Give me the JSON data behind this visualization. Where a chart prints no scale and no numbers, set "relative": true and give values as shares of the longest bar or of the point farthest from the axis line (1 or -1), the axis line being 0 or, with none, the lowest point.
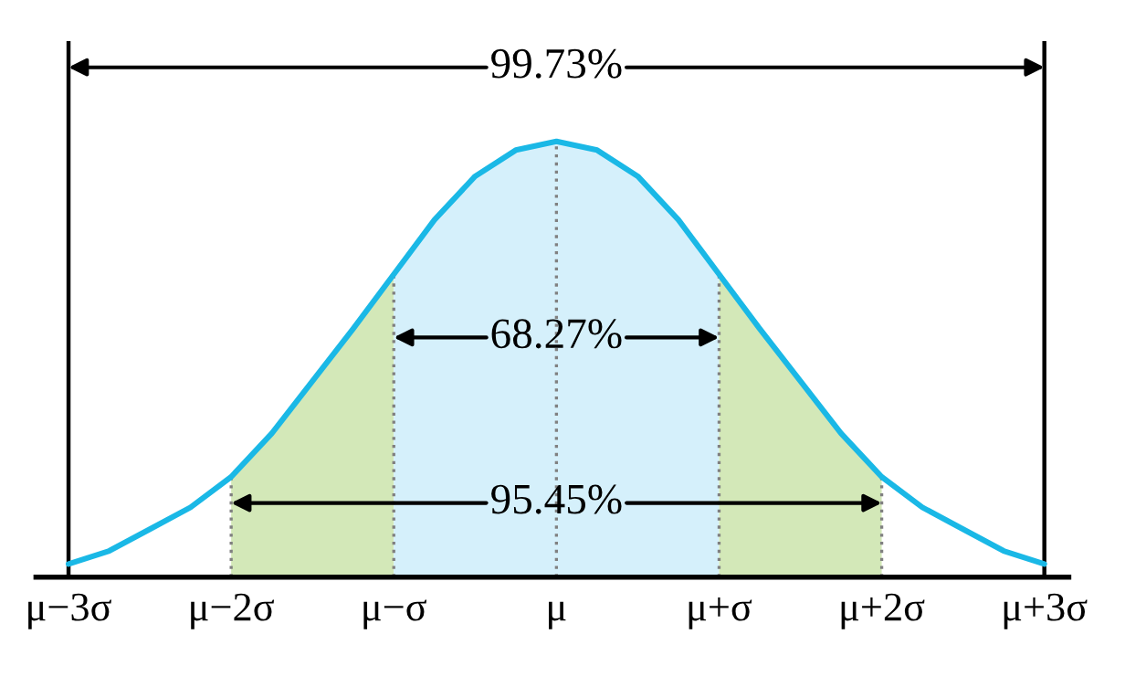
{
  "chart_data": {
    "type": "area",
    "relative": true,
    "tick_labels": "x",
    "grid": false,
    "categories": [
      "μ−3σ",
      null,
      null,
      null,
      "μ−2σ",
      null,
      null,
      null,
      "μ−σ",
      null,
      null,
      null,
      "μ",
      null,
      null,
      null,
      "μ+σ",
      null,
      null,
      null,
      "μ+2σ",
      null,
      null,
      null,
      "μ+3σ"
    ],
    "series": [
      {
        "color": "#d3e8b8",
        "values": [
          null,
          null,
          null,
          null,
          0.23,
          0.33,
          0.45,
          0.57,
          0.695,
          null,
          null,
          null,
          null,
          null,
          null,
          null,
          null,
          null,
          null,
          null,
          null,
          null,
          null,
          null,
          null
        ]
      },
      {
        "color": "#d5f0fb",
        "values": [
          null,
          null,
          null,
          null,
          null,
          null,
          null,
          null,
          0.695,
          0.82,
          0.92,
          0.98,
          1,
          0.98,
          0.92,
          0.82,
          0.695,
          null,
          null,
          null,
          null,
          null,
          null,
          null,
          null
        ]
      },
      {
        "color": "#d3e8b8",
        "values": [
          null,
          null,
          null,
          null,
          null,
          null,
          null,
          null,
          null,
          null,
          null,
          null,
          null,
          null,
          null,
          null,
          0.695,
          0.57,
          0.45,
          0.33,
          0.23,
          null,
          null,
          null,
          null
        ]
      },
      {
        "type": "line",
        "color": "#1ab8e6",
        "values": [
          0.03,
          0.06,
          0.11,
          0.16,
          0.23,
          0.33,
          0.45,
          0.57,
          0.695,
          0.82,
          0.92,
          0.98,
          1,
          0.98,
          0.92,
          0.82,
          0.695,
          0.57,
          0.45,
          0.33,
          0.23,
          0.16,
          0.11,
          0.06,
          0.03
        ]
      }
    ],
    "ref_lines": [
      {
        "axis": "x",
        "value": "μ−3σ",
        "color": "#000000",
        "line_style": "solid"
      },
      {
        "axis": "x",
        "value": "μ−2σ",
        "color": "#808080",
        "line_style": "dotted"
      },
      {
        "axis": "x",
        "value": "μ−σ",
        "color": "#808080",
        "line_style": "dotted"
      },
      {
        "axis": "x",
        "value": "μ",
        "color": "#808080",
        "line_style": "dotted"
      },
      {
        "axis": "x",
        "value": "μ+σ",
        "color": "#808080",
        "line_style": "dotted"
      },
      {
        "axis": "x",
        "value": "μ+2σ",
        "color": "#808080",
        "line_style": "dotted"
      },
      {
        "axis": "x",
        "value": "μ+3σ",
        "color": "#000000",
        "line_style": "solid"
      }
    ],
    "annotations": [
      "99.73%",
      {
        "text": "68.27%",
        "x": "μ",
        "y": 0.55
      },
      {
        "text": "95.45%",
        "x": "μ",
        "y": 0.17
      }
    ]
  }
}
